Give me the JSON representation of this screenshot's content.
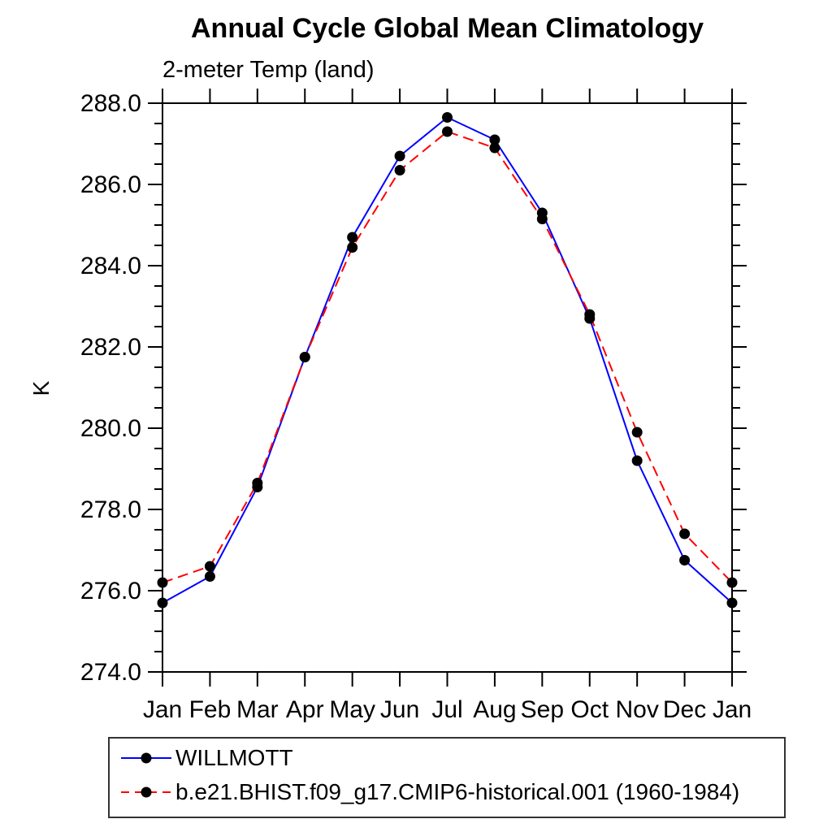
{
  "title": "Annual Cycle Global Mean Climatology",
  "subtitle": "2-meter Temp (land)",
  "chart_data": {
    "type": "line",
    "x_categories": [
      "Jan",
      "Feb",
      "Mar",
      "Apr",
      "May",
      "Jun",
      "Jul",
      "Aug",
      "Sep",
      "Oct",
      "Nov",
      "Dec",
      "Jan"
    ],
    "ylabel": "K",
    "ylim": [
      274.0,
      288.0
    ],
    "ytick_major_step": 2.0,
    "ytick_minor_step": 0.5,
    "grid": false,
    "legend_position": "bottom-left",
    "marker": {
      "shape": "circle",
      "color": "#000000"
    },
    "axis_color": "#000000",
    "series": [
      {
        "name": "WILLMOTT",
        "color": "#0000ff",
        "line_style": "solid",
        "values": [
          275.7,
          276.35,
          278.55,
          281.75,
          284.7,
          286.7,
          287.65,
          287.1,
          285.3,
          282.7,
          279.2,
          276.75,
          275.7
        ]
      },
      {
        "name": "b.e21.BHIST.f09_g17.CMIP6-historical.001 (1960-1984)",
        "color": "#ff0000",
        "line_style": "dashed",
        "values": [
          276.2,
          276.6,
          278.65,
          281.75,
          284.45,
          286.35,
          287.3,
          286.9,
          285.15,
          282.8,
          279.9,
          277.4,
          276.2
        ]
      }
    ]
  }
}
